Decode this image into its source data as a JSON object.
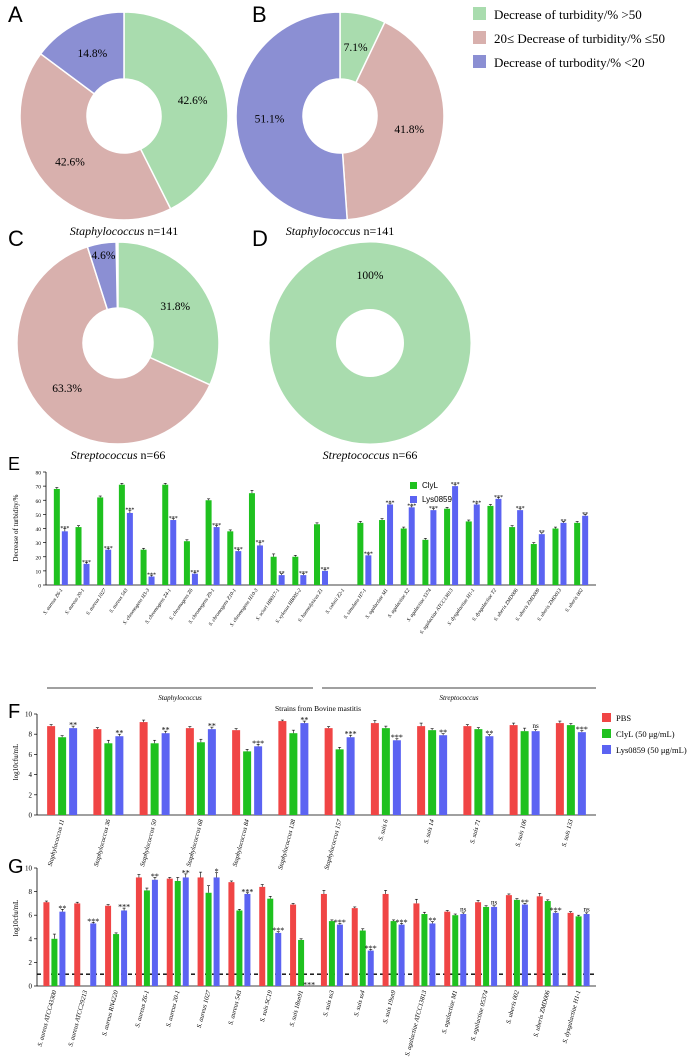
{
  "colors": {
    "green": "#a9dcae",
    "pink": "#d8b0ad",
    "purple": "#8b8fd3",
    "bar_green": "#1fc11f",
    "bar_blue": "#5b63f2",
    "bar_red": "#f04545"
  },
  "donut_legend": [
    "Decrease of turbidity/% >50",
    "20≤ Decrease of turbidity/% ≤50",
    "Decrease of turbodity/% <20"
  ],
  "panels": {
    "A": {
      "letter": "A",
      "genus": "Staphylococcus",
      "n": " n=141",
      "labels": [
        "42.6%",
        "42.6%",
        "14.8%"
      ]
    },
    "B": {
      "letter": "B",
      "genus": "Staphylococcus",
      "n": " n=141",
      "labels": [
        "7.1%",
        "41.8%",
        "51.1%"
      ]
    },
    "C": {
      "letter": "C",
      "genus": "Streptococcus",
      "n": " n=66",
      "labels": [
        "31.8%",
        "63.3%",
        "4.6%"
      ]
    },
    "D": {
      "letter": "D",
      "genus": "Streptococcus",
      "n": " n=66",
      "labels": [
        "100%"
      ]
    },
    "E": {
      "letter": "E",
      "ylabel": "Decrease of turbidity/%",
      "group1": "Staphylococcus",
      "group2": "Streptococcus",
      "legend": [
        "ClyL",
        "Lys0859"
      ]
    },
    "F": {
      "letter": "F",
      "title": "Strains from Bovine mastitis",
      "ylabel": "log10cfu/mL",
      "legend": [
        "PBS",
        "ClyL (50 μg/mL)",
        "Lys0859 (50 μg/mL)"
      ]
    },
    "G": {
      "letter": "G",
      "ylabel": "log10cfu/mL"
    }
  },
  "chart_data": [
    {
      "panel": "A",
      "type": "pie",
      "donut": true,
      "slices": [
        {
          "label": "Decrease of turbidity/% >50",
          "value": 42.6
        },
        {
          "label": "20≤ Decrease of turbidity/% ≤50",
          "value": 42.6
        },
        {
          "label": "Decrease of turbodity/% <20",
          "value": 14.8
        }
      ]
    },
    {
      "panel": "B",
      "type": "pie",
      "donut": true,
      "slices": [
        {
          "label": "Decrease of turbidity/% >50",
          "value": 7.1
        },
        {
          "label": "20≤ Decrease of turbidity/% ≤50",
          "value": 41.8
        },
        {
          "label": "Decrease of turbodity/% <20",
          "value": 51.1
        }
      ]
    },
    {
      "panel": "C",
      "type": "pie",
      "donut": true,
      "slices": [
        {
          "label": "Decrease of turbidity/% >50",
          "value": 31.8
        },
        {
          "label": "20≤ Decrease of turbidity/% ≤50",
          "value": 63.3
        },
        {
          "label": "Decrease of turbodity/% <20",
          "value": 4.6
        }
      ]
    },
    {
      "panel": "D",
      "type": "pie",
      "donut": true,
      "slices": [
        {
          "label": "Decrease of turbidity/% >50",
          "value": 100
        }
      ]
    },
    {
      "panel": "E",
      "type": "bar",
      "ylim": [
        0,
        80
      ],
      "yticks": [
        0,
        10,
        20,
        30,
        40,
        50,
        60,
        70,
        80
      ],
      "categories": [
        "S. aureus Z6-1",
        "S. aureus 20-1",
        "S. aureus 1027",
        "S. aureus 543",
        "S. chromogens H3-3",
        "S. chromogens Z4-1",
        "S. chromogens Z6",
        "S. chromogens Z9-1",
        "S. chromogens Z10-1",
        "S. chromogens H10-3",
        "S. sciuri HB017-1",
        "S. xylosus HB005-2",
        "S. haemolyticus Z1",
        "S. cohnii Z2-1",
        "S. simulans H7-1",
        "S. agalactiae M1",
        "S. agalactiae X2",
        "S. agalactiae 3374",
        "S. agalactiae ATCC13813",
        "S. dysgalactiae H1-1",
        "S. dysgalactiae T2",
        "S. uberis ZMD006",
        "S. uberis ZMD009",
        "S. uberis ZMD013",
        "S. uberis 002"
      ],
      "series": [
        {
          "name": "ClyL",
          "values": [
            68,
            41,
            62,
            71,
            25,
            71,
            31,
            60,
            38,
            65,
            20,
            20,
            43,
            0,
            44,
            46,
            40,
            32,
            54,
            45,
            56,
            41,
            29,
            40,
            44
          ],
          "errors": [
            1,
            1,
            1,
            1,
            1,
            1,
            1,
            1,
            1,
            2,
            2,
            1,
            1,
            0,
            1,
            1,
            1,
            1,
            1,
            1,
            1,
            1,
            1,
            1,
            1
          ]
        },
        {
          "name": "Lys0859",
          "values": [
            38,
            15,
            25,
            51,
            6,
            46,
            8,
            41,
            24,
            28,
            7,
            7,
            10,
            0,
            21,
            57,
            55,
            53,
            70,
            57,
            61,
            53,
            36,
            44,
            49
          ],
          "errors": [
            2,
            1,
            1,
            2,
            1,
            1,
            1,
            1,
            1,
            2,
            1,
            1,
            1,
            0,
            1,
            1,
            1,
            1,
            1,
            1,
            1,
            1,
            1,
            1,
            1
          ],
          "sig": [
            "***",
            "***",
            "***",
            "***",
            "***",
            "***",
            "***",
            "***",
            "***",
            "***",
            "**",
            "***",
            "***",
            "",
            "***",
            "***",
            "***",
            "***",
            "***",
            "***",
            "***",
            "***",
            "**",
            "**",
            "**"
          ]
        }
      ]
    },
    {
      "panel": "F",
      "type": "bar",
      "ylim": [
        0,
        10
      ],
      "yticks": [
        0,
        2,
        4,
        6,
        8,
        10
      ],
      "categories": [
        "Staphylococcus 11",
        "Staphylococcus 36",
        "Staphylococcus 50",
        "Staphylococcus 68",
        "Staphylococcus 84",
        "Staphylococcus 138",
        "Staphylococcus 157",
        "S. suis 6",
        "S. suis 14",
        "S. suis 71",
        "S. suis 106",
        "S. suis 133"
      ],
      "series": [
        {
          "name": "PBS",
          "values": [
            8.8,
            8.5,
            9.2,
            8.6,
            8.4,
            9.3,
            8.6,
            9.1,
            8.8,
            8.8,
            8.9,
            9.1
          ],
          "errors": [
            0.15,
            0.15,
            0.2,
            0.15,
            0.15,
            0.1,
            0.15,
            0.25,
            0.3,
            0.15,
            0.2,
            0.2
          ]
        },
        {
          "name": "ClyL (50 μg/mL)",
          "values": [
            7.7,
            7.1,
            7.1,
            7.2,
            6.3,
            8.1,
            6.5,
            8.6,
            8.4,
            8.5,
            8.3,
            8.9
          ],
          "errors": [
            0.15,
            0.3,
            0.3,
            0.3,
            0.2,
            0.3,
            0.2,
            0.2,
            0.15,
            0.15,
            0.3,
            0.15
          ]
        },
        {
          "name": "Lys0859 (50 μg/mL)",
          "values": [
            8.6,
            7.8,
            8.1,
            8.5,
            6.8,
            9.1,
            7.7,
            7.4,
            7.9,
            7.8,
            8.3,
            8.2
          ],
          "errors": [
            0.2,
            0.2,
            0.2,
            0.2,
            0.2,
            0.2,
            0.2,
            0.15,
            0.15,
            0.15,
            0.15,
            0.15
          ],
          "sig": [
            "**",
            "**",
            "**",
            "**",
            "***",
            "**",
            "***",
            "***",
            "**",
            "**",
            "",
            "***"
          ],
          "sig_ns": [
            "",
            "",
            "",
            "",
            "",
            "",
            "",
            "",
            "",
            "",
            "ns",
            ""
          ]
        }
      ]
    },
    {
      "panel": "G",
      "type": "bar",
      "ylim": [
        0,
        10
      ],
      "yticks": [
        0,
        2,
        4,
        6,
        8,
        10
      ],
      "reference_line": 1,
      "categories": [
        "S. aureus ATCC43300",
        "S. aureus ATCC29213",
        "S. aureus RN4220",
        "S. aureus Z6-1",
        "S. aureus 20-1",
        "S. aureus 1027",
        "S. aureus 543",
        "S. suis SC19",
        "S. suis 18sn91",
        "S. suis ss3",
        "S. suis ss4",
        "S. suis 19sn9",
        "S. agalactiae ATCC13813",
        "S. agalactiae M1",
        "S. agalactiae 05374",
        "S. uberis 002",
        "S. uberis ZMD006",
        "S. dysgalactiae H1-1"
      ],
      "series": [
        {
          "name": "PBS",
          "values": [
            7.1,
            7.0,
            6.8,
            9.2,
            9.1,
            9.2,
            8.8,
            8.4,
            6.9,
            7.8,
            6.6,
            7.8,
            7.0,
            6.3,
            7.1,
            7.7,
            7.6,
            6.2
          ],
          "errors": [
            0.1,
            0.1,
            0.1,
            0.25,
            0.1,
            0.45,
            0.1,
            0.2,
            0.1,
            0.3,
            0.1,
            0.3,
            0.35,
            0.1,
            0.15,
            0.1,
            0.25,
            0.1
          ]
        },
        {
          "name": "ClyL (50 μg/mL)",
          "values": [
            4.0,
            0,
            4.4,
            8.1,
            8.9,
            7.9,
            6.4,
            7.4,
            3.9,
            5.5,
            4.7,
            5.5,
            6.1,
            6.0,
            6.7,
            7.3,
            7.2,
            5.9
          ],
          "errors": [
            0.4,
            0,
            0.1,
            0.2,
            0.3,
            0.6,
            0.1,
            0.2,
            0.1,
            0.1,
            0.15,
            0.1,
            0.15,
            0.1,
            0.1,
            0.1,
            0.1,
            0.1
          ]
        },
        {
          "name": "Lys0859 (50 μg/mL)",
          "values": [
            6.3,
            5.3,
            6.4,
            9.0,
            9.2,
            9.2,
            7.8,
            4.5,
            0,
            5.2,
            3.0,
            5.2,
            5.3,
            6.1,
            6.7,
            6.9,
            6.2,
            6.1
          ],
          "errors": [
            0.2,
            0.1,
            0.2,
            0.2,
            0.3,
            0.4,
            0.1,
            0.1,
            0,
            0.1,
            0.1,
            0.1,
            0.15,
            0.1,
            0.1,
            0.1,
            0.1,
            0.1
          ],
          "sig": [
            "**",
            "***",
            "***",
            "**",
            "**",
            "*",
            "***",
            "***",
            "***",
            "***",
            "***",
            "***",
            "**",
            "",
            "",
            "**",
            "***",
            ""
          ],
          "sig_ns": [
            "",
            "",
            "",
            "",
            "",
            "",
            "",
            "",
            "",
            "",
            "",
            "",
            "",
            "ns",
            "ns",
            "",
            "",
            "ns"
          ]
        }
      ]
    }
  ]
}
